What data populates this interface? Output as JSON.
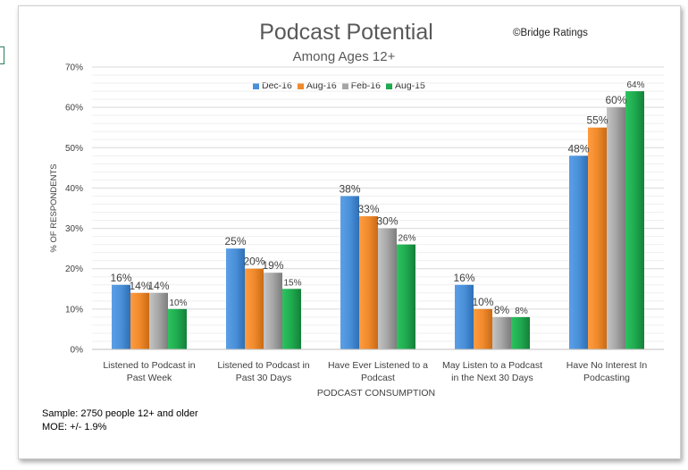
{
  "chart_data": {
    "type": "bar",
    "title": "Podcast Potential",
    "subtitle": "Among Ages 12+",
    "source": "©Bridge Ratings",
    "xlabel": "PODCAST CONSUMPTION",
    "ylabel": "% OF RESPONDENTS",
    "ylim": [
      0,
      70
    ],
    "yticks": [
      "0%",
      "10%",
      "20%",
      "30%",
      "40%",
      "50%",
      "60%",
      "70%"
    ],
    "grid": true,
    "legend_position": "top",
    "categories": [
      [
        "Listened to Podcast in",
        "Past Week"
      ],
      [
        "Listened to Podcast in",
        "Past 30 Days"
      ],
      [
        "Have Ever Listened to a",
        "Podcast"
      ],
      [
        "May Listen to a Podcast",
        "in the Next 30 Days"
      ],
      [
        "Have No Interest In",
        "Podcasting"
      ]
    ],
    "series": [
      {
        "name": "Dec-16",
        "color": "#4a90d9",
        "values": [
          16,
          25,
          38,
          16,
          48
        ],
        "labels": [
          "16%",
          "25%",
          "38%",
          "16%",
          "48%"
        ]
      },
      {
        "name": "Aug-16",
        "color": "#f08a2c",
        "values": [
          14,
          20,
          33,
          10,
          55
        ],
        "labels": [
          "14%",
          "20%",
          "33%",
          "10%",
          "55%"
        ]
      },
      {
        "name": "Feb-16",
        "color": "#a6a6a6",
        "values": [
          14,
          19,
          30,
          8,
          60
        ],
        "labels": [
          "14%",
          "19%",
          "30%",
          "8%",
          "60%"
        ]
      },
      {
        "name": "Aug-15",
        "color": "#1faa4f",
        "values": [
          10,
          15,
          26,
          8,
          64
        ],
        "labels": [
          "10%",
          "15%",
          "26%",
          "8%",
          "64%"
        ]
      }
    ]
  },
  "notes": {
    "sample": "Sample: 2750 people 12+ and older",
    "moe": "MOE: +/- 1.9%"
  }
}
